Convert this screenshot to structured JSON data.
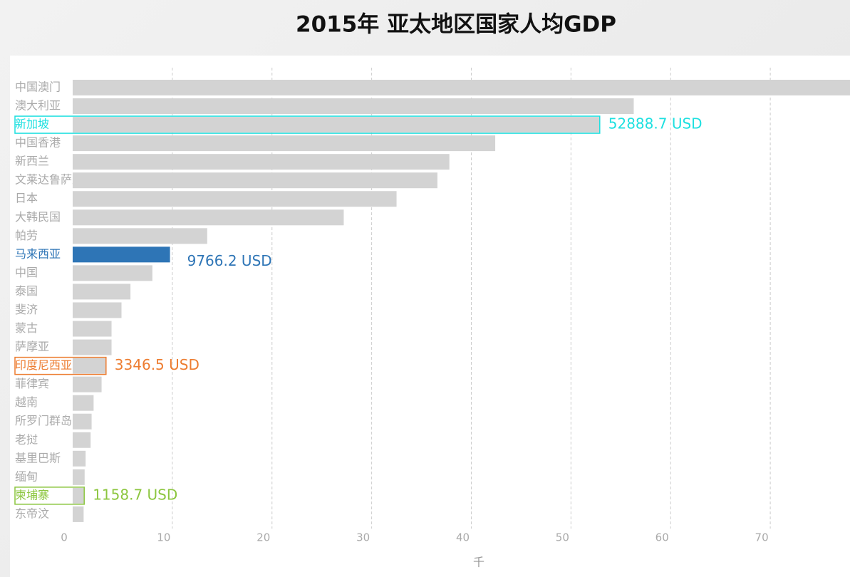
{
  "chart_data": {
    "type": "hbar",
    "title": "2015年 亚太地区国家人均GDP",
    "x_label": "千",
    "categories": [
      "中国澳门",
      "澳大利亚",
      "新加坡",
      "中国香港",
      "新西兰",
      "文莱达鲁萨兰国",
      "日本",
      "大韩民国",
      "帕劳",
      "马来西亚",
      "中国",
      "泰国",
      "斐济",
      "蒙古",
      "萨摩亚",
      "印度尼西亚",
      "菲律宾",
      "越南",
      "所罗门群岛",
      "老挝",
      "基里巴斯",
      "缅甸",
      "柬埔寨",
      "东帝汶"
    ],
    "values": [
      80,
      56.3,
      52.8887,
      42.4,
      37.8,
      36.6,
      32.5,
      27.2,
      13.5,
      9.7662,
      8.0,
      5.8,
      4.9,
      3.9,
      3.9,
      3.3465,
      2.9,
      2.1,
      1.9,
      1.8,
      1.3,
      1.2,
      1.1587,
      1.1
    ],
    "value_labels": [
      null,
      null,
      "52888.7 USD",
      null,
      null,
      null,
      null,
      null,
      null,
      "9766.2 USD",
      null,
      null,
      null,
      null,
      null,
      "3346.5 USD",
      null,
      null,
      null,
      null,
      null,
      null,
      "1158.7 USD",
      null
    ],
    "colors": [
      "#d3d3d3",
      "#d3d3d3",
      "#d3d3d3",
      "#d3d3d3",
      "#d3d3d3",
      "#d3d3d3",
      "#d3d3d3",
      "#d3d3d3",
      "#d3d3d3",
      "#2e75b6",
      "#d3d3d3",
      "#d3d3d3",
      "#d3d3d3",
      "#d3d3d3",
      "#d3d3d3",
      "#d3d3d3",
      "#d3d3d3",
      "#d3d3d3",
      "#d3d3d3",
      "#d3d3d3",
      "#d3d3d3",
      "#d3d3d3",
      "#d3d3d3",
      "#d3d3d3"
    ],
    "highlight": [
      null,
      null,
      "#1ee0e0",
      null,
      null,
      null,
      null,
      null,
      null,
      "#2e75b6",
      null,
      null,
      null,
      null,
      null,
      "#ed7d31",
      null,
      null,
      null,
      null,
      null,
      null,
      "#8cc63f",
      null
    ],
    "xlim": [
      0,
      78
    ],
    "xticks": [
      0,
      10,
      20,
      30,
      40,
      50,
      60,
      70
    ],
    "grid": true
  }
}
